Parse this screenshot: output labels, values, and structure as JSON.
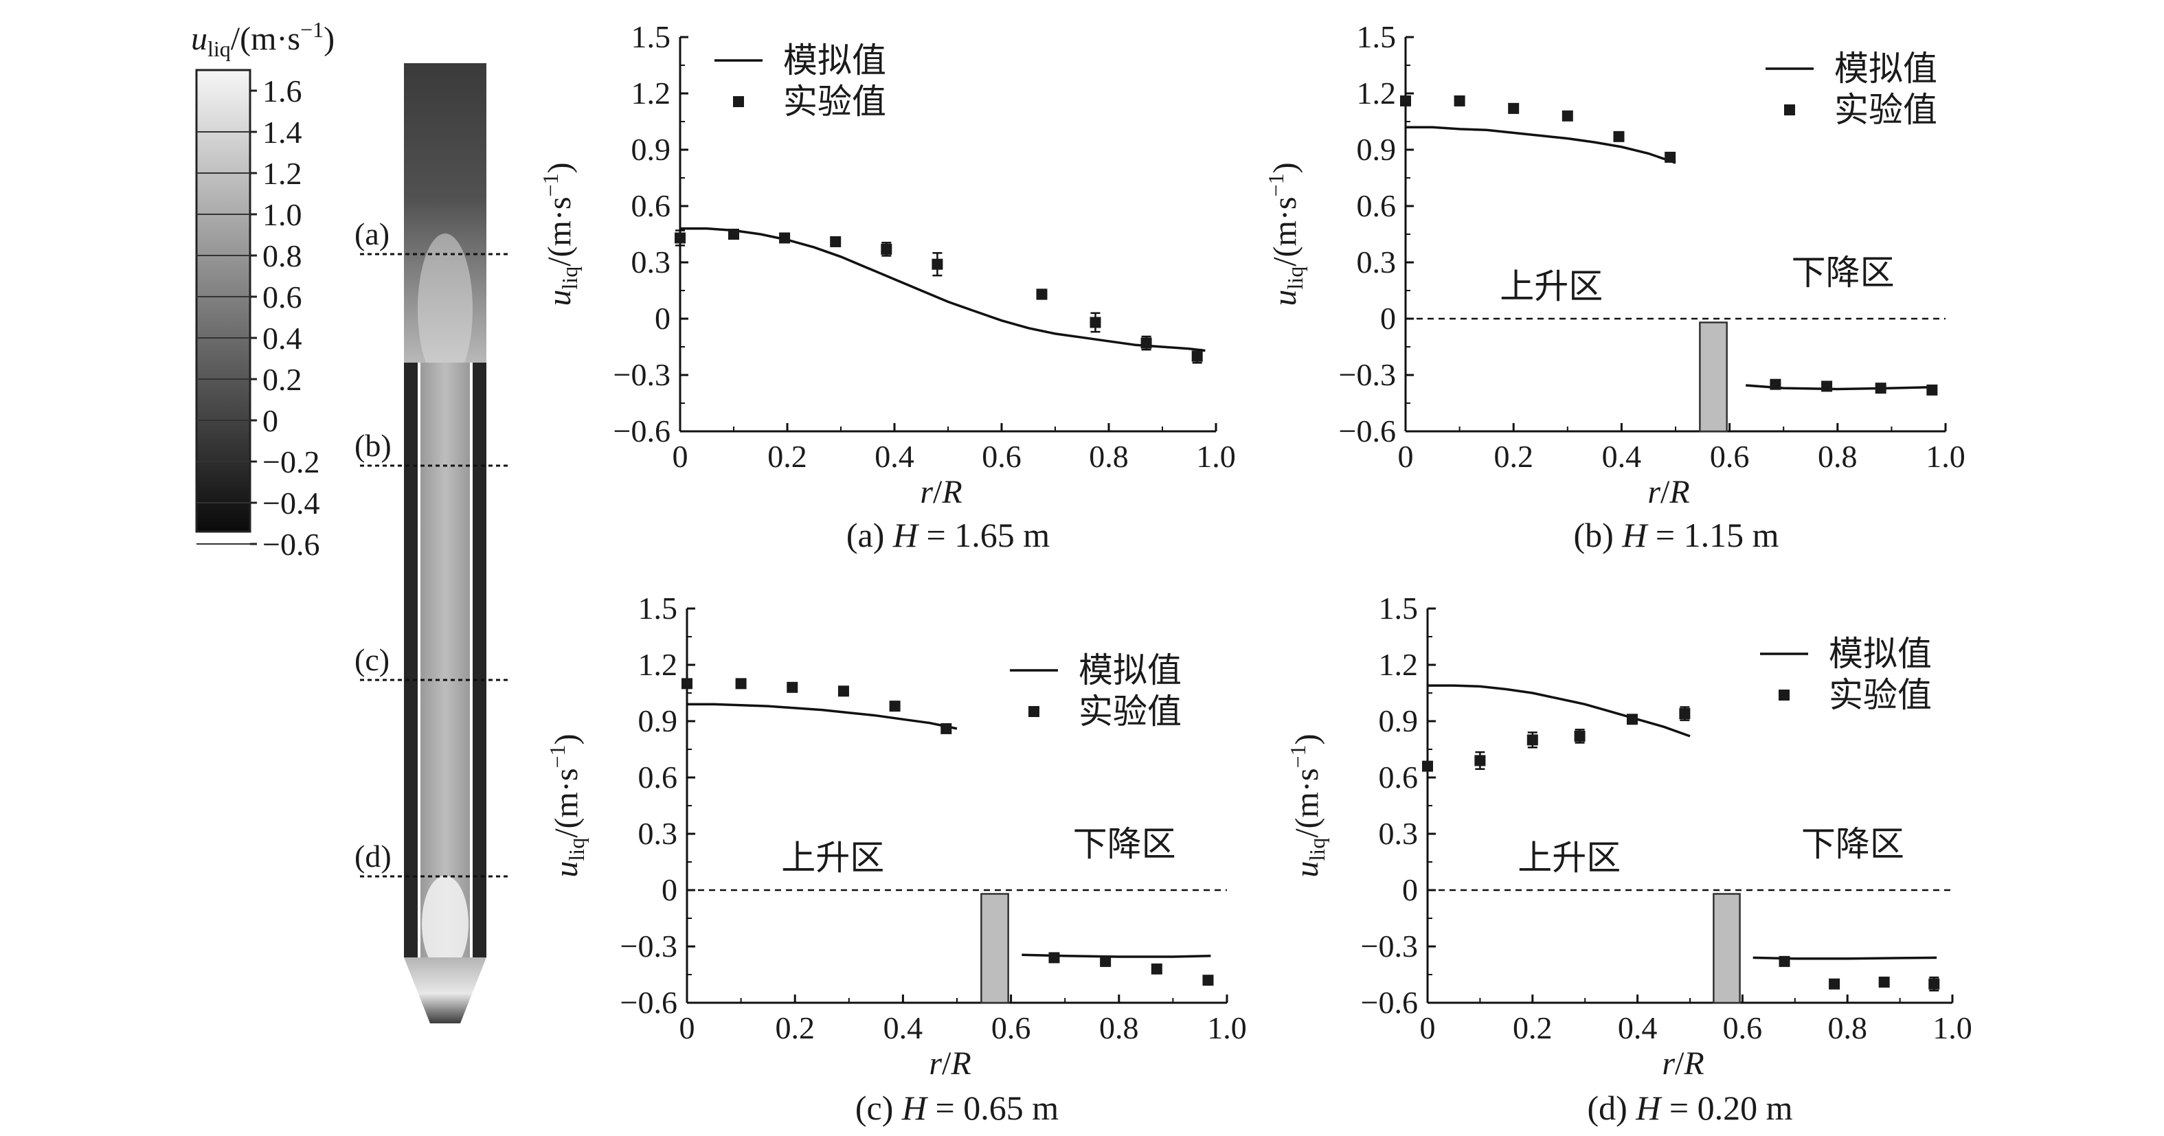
{
  "colorbar": {
    "title_var": "u",
    "title_sub": "liq",
    "title_unit": "/(m·s",
    "title_exp": "−1",
    "title_close": ")",
    "ticks": [
      "1.6",
      "1.4",
      "1.2",
      "1.0",
      "0.8",
      "0.6",
      "0.4",
      "0.2",
      "0",
      "−0.2",
      "−0.4",
      "−0.6"
    ]
  },
  "reactor": {
    "section_labels": [
      "(a)",
      "(b)",
      "(c)",
      "(d)"
    ]
  },
  "chart_data": [
    {
      "type": "scatter",
      "caption_prefix": "(a) ",
      "caption_var": "H",
      "caption_value": " = 1.65 m",
      "xlabel_var_r": "r",
      "xlabel_slash": "/",
      "xlabel_var_R": "R",
      "ylabel_var": "u",
      "ylabel_sub": "liq",
      "ylabel_unit": "/(m·s",
      "ylabel_exp": "−1",
      "ylabel_close": ")",
      "xlim": [
        0,
        1.0
      ],
      "ylim": [
        -0.6,
        1.5
      ],
      "xticks": [
        "0",
        "0.2",
        "0.4",
        "0.6",
        "0.8",
        "1.0"
      ],
      "yticks": [
        "1.5",
        "1.2",
        "0.9",
        "0.6",
        "0.3",
        "0",
        "−0.3",
        "−0.6"
      ],
      "legend": {
        "sim": "模拟值",
        "exp": "实验值"
      },
      "zero_line": false,
      "region_labels": null,
      "wall": null,
      "simulated_series": [
        {
          "x": [
            0,
            0.05,
            0.1,
            0.15,
            0.2,
            0.25,
            0.3,
            0.35,
            0.4,
            0.45,
            0.5,
            0.55,
            0.6,
            0.65,
            0.7,
            0.75,
            0.8,
            0.85,
            0.9,
            0.95,
            0.98
          ],
          "y": [
            0.48,
            0.48,
            0.47,
            0.45,
            0.42,
            0.38,
            0.33,
            0.27,
            0.21,
            0.15,
            0.09,
            0.04,
            -0.01,
            -0.05,
            -0.08,
            -0.1,
            -0.12,
            -0.14,
            -0.15,
            -0.16,
            -0.17
          ]
        }
      ],
      "experimental": {
        "x": [
          0.0,
          0.1,
          0.195,
          0.29,
          0.385,
          0.48,
          0.675,
          0.775,
          0.87,
          0.965
        ],
        "y": [
          0.43,
          0.45,
          0.43,
          0.41,
          0.37,
          0.29,
          0.13,
          -0.02,
          -0.13,
          -0.2
        ],
        "err": [
          0.04,
          0.015,
          0.015,
          0.015,
          0.035,
          0.06,
          0.025,
          0.05,
          0.035,
          0.035
        ]
      }
    },
    {
      "type": "scatter",
      "caption_prefix": "(b) ",
      "caption_var": "H",
      "caption_value": " = 1.15 m",
      "xlabel_var_r": "r",
      "xlabel_slash": "/",
      "xlabel_var_R": "R",
      "ylabel_var": "u",
      "ylabel_sub": "liq",
      "ylabel_unit": "/(m·s",
      "ylabel_exp": "−1",
      "ylabel_close": ")",
      "xlim": [
        0,
        1.0
      ],
      "ylim": [
        -0.6,
        1.5
      ],
      "xticks": [
        "0",
        "0.2",
        "0.4",
        "0.6",
        "0.8",
        "1.0"
      ],
      "yticks": [
        "1.5",
        "1.2",
        "0.9",
        "0.6",
        "0.3",
        "0",
        "−0.3",
        "−0.6"
      ],
      "legend": {
        "sim": "模拟值",
        "exp": "实验值"
      },
      "zero_line": true,
      "region_labels": {
        "up": "上升区",
        "down": "下降区"
      },
      "wall": {
        "x0": 0.545,
        "x1": 0.595,
        "ytop": -0.02
      },
      "simulated_series": [
        {
          "x": [
            0,
            0.05,
            0.1,
            0.15,
            0.2,
            0.25,
            0.3,
            0.35,
            0.4,
            0.45,
            0.5
          ],
          "y": [
            1.02,
            1.02,
            1.01,
            1.005,
            0.99,
            0.975,
            0.96,
            0.94,
            0.915,
            0.88,
            0.83
          ]
        },
        {
          "x": [
            0.63,
            0.7,
            0.8,
            0.9,
            0.97
          ],
          "y": [
            -0.355,
            -0.37,
            -0.375,
            -0.37,
            -0.365
          ]
        }
      ],
      "experimental": {
        "x": [
          0.0,
          0.1,
          0.2,
          0.3,
          0.395,
          0.49,
          0.685,
          0.78,
          0.88,
          0.975
        ],
        "y": [
          1.16,
          1.16,
          1.12,
          1.08,
          0.97,
          0.86,
          -0.35,
          -0.36,
          -0.37,
          -0.38
        ],
        "err": [
          0.02,
          0.02,
          0.02,
          0.015,
          0.015,
          0.015,
          0.015,
          0.015,
          0.015,
          0.015
        ]
      }
    },
    {
      "type": "scatter",
      "caption_prefix": "(c) ",
      "caption_var": "H",
      "caption_value": " = 0.65 m",
      "xlabel_var_r": "r",
      "xlabel_slash": "/",
      "xlabel_var_R": "R",
      "ylabel_var": "u",
      "ylabel_sub": "liq",
      "ylabel_unit": "/(m·s",
      "ylabel_exp": "−1",
      "ylabel_close": ")",
      "xlim": [
        0,
        1.0
      ],
      "ylim": [
        -0.6,
        1.5
      ],
      "xticks": [
        "0",
        "0.2",
        "0.4",
        "0.6",
        "0.8",
        "1.0"
      ],
      "yticks": [
        "1.5",
        "1.2",
        "0.9",
        "0.6",
        "0.3",
        "0",
        "−0.3",
        "−0.6"
      ],
      "legend": {
        "sim": "模拟值",
        "exp": "实验值"
      },
      "zero_line": true,
      "region_labels": {
        "up": "上升区",
        "down": "下降区"
      },
      "wall": {
        "x0": 0.545,
        "x1": 0.595,
        "ytop": -0.02
      },
      "simulated_series": [
        {
          "x": [
            0,
            0.05,
            0.1,
            0.15,
            0.2,
            0.25,
            0.3,
            0.35,
            0.4,
            0.45,
            0.5
          ],
          "y": [
            0.99,
            0.99,
            0.985,
            0.98,
            0.97,
            0.96,
            0.945,
            0.93,
            0.91,
            0.89,
            0.86
          ]
        },
        {
          "x": [
            0.62,
            0.7,
            0.8,
            0.9,
            0.97
          ],
          "y": [
            -0.345,
            -0.35,
            -0.355,
            -0.355,
            -0.35
          ]
        }
      ],
      "experimental": {
        "x": [
          0.0,
          0.1,
          0.195,
          0.29,
          0.385,
          0.48,
          0.68,
          0.775,
          0.87,
          0.965
        ],
        "y": [
          1.1,
          1.1,
          1.08,
          1.06,
          0.98,
          0.86,
          -0.36,
          -0.38,
          -0.42,
          -0.48
        ],
        "err": [
          0.015,
          0.015,
          0.015,
          0.015,
          0.015,
          0.015,
          0.015,
          0.015,
          0.015,
          0.015
        ]
      }
    },
    {
      "type": "scatter",
      "caption_prefix": "(d) ",
      "caption_var": "H",
      "caption_value": " = 0.20 m",
      "xlabel_var_r": "r",
      "xlabel_slash": "/",
      "xlabel_var_R": "R",
      "ylabel_var": "u",
      "ylabel_sub": "liq",
      "ylabel_unit": "/(m·s",
      "ylabel_exp": "−1",
      "ylabel_close": ")",
      "xlim": [
        0,
        1.0
      ],
      "ylim": [
        -0.6,
        1.5
      ],
      "xticks": [
        "0",
        "0.2",
        "0.4",
        "0.6",
        "0.8",
        "1.0"
      ],
      "yticks": [
        "1.5",
        "1.2",
        "0.9",
        "0.6",
        "0.3",
        "0",
        "−0.3",
        "−0.6"
      ],
      "legend": {
        "sim": "模拟值",
        "exp": "实验值"
      },
      "zero_line": true,
      "region_labels": {
        "up": "上升区",
        "down": "下降区"
      },
      "wall": {
        "x0": 0.545,
        "x1": 0.595,
        "ytop": -0.02
      },
      "simulated_series": [
        {
          "x": [
            0,
            0.05,
            0.1,
            0.15,
            0.2,
            0.25,
            0.3,
            0.35,
            0.4,
            0.45,
            0.5
          ],
          "y": [
            1.09,
            1.09,
            1.085,
            1.07,
            1.05,
            1.02,
            0.99,
            0.95,
            0.91,
            0.87,
            0.82
          ]
        },
        {
          "x": [
            0.62,
            0.7,
            0.8,
            0.9,
            0.97
          ],
          "y": [
            -0.36,
            -0.365,
            -0.365,
            -0.362,
            -0.36
          ]
        }
      ],
      "experimental": {
        "x": [
          0.0,
          0.1,
          0.2,
          0.29,
          0.39,
          0.49,
          0.68,
          0.775,
          0.87,
          0.965
        ],
        "y": [
          0.66,
          0.69,
          0.8,
          0.82,
          0.91,
          0.94,
          -0.38,
          -0.5,
          -0.49,
          -0.5
        ],
        "err": [
          0.02,
          0.045,
          0.04,
          0.035,
          0.015,
          0.035,
          0.02,
          0.015,
          0.015,
          0.035
        ]
      }
    }
  ]
}
